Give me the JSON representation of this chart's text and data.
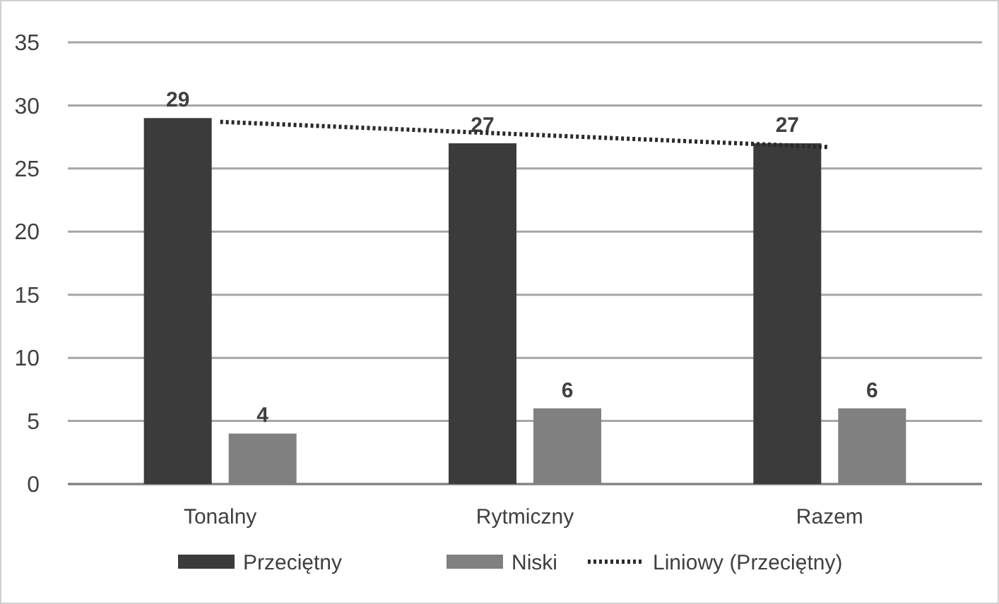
{
  "chart_data": {
    "type": "bar",
    "categories": [
      "Tonalny",
      "Rytmiczny",
      "Razem"
    ],
    "series": [
      {
        "name": "Przeciętny",
        "color": "#3b3b3b",
        "values": [
          29,
          27,
          27
        ],
        "value_labels": [
          "29",
          "27",
          "27"
        ]
      },
      {
        "name": "Niski",
        "color": "#808080",
        "values": [
          4,
          6,
          6
        ],
        "value_labels": [
          "4",
          "6",
          "6"
        ]
      },
      {
        "name": "Liniowy (Przeciętny)",
        "type": "line",
        "color": "#2a2a2a",
        "line_style": "dotted",
        "values": [
          28.7,
          27.7,
          26.7
        ]
      }
    ],
    "ylim": [
      0,
      35
    ],
    "yticks": [
      0,
      5,
      10,
      15,
      20,
      25,
      30,
      35
    ],
    "grid": "y",
    "legend": "bottom"
  }
}
